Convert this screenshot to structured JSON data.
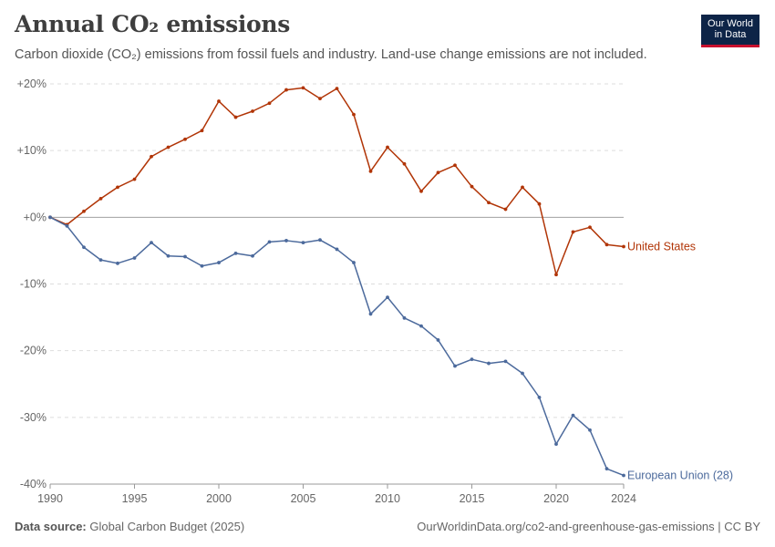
{
  "header": {
    "title": "Annual CO₂ emissions",
    "subtitle": "Carbon dioxide (CO₂) emissions from fossil fuels and industry. Land-use change emissions are not included.",
    "logo_line1": "Our World",
    "logo_line2": "in Data"
  },
  "footer": {
    "source_label": "Data source:",
    "source_value": "Global Carbon Budget (2025)",
    "url_license": "OurWorldinData.org/co2-and-greenhouse-gas-emissions | CC BY"
  },
  "chart_data": {
    "type": "line",
    "title": "Annual CO₂ emissions",
    "subtitle": "Carbon dioxide (CO₂) emissions from fossil fuels and industry. Land-use change emissions are not included.",
    "xlabel": "",
    "ylabel": "",
    "xlim": [
      1990,
      2024
    ],
    "ylim": [
      -40,
      20
    ],
    "x_ticks": [
      1990,
      1995,
      2000,
      2005,
      2010,
      2015,
      2020,
      2024
    ],
    "y_ticks": [
      20,
      10,
      0,
      -10,
      -20,
      -30,
      -40
    ],
    "y_tick_labels": [
      "+20%",
      "+10%",
      "+0%",
      "-10%",
      "-20%",
      "-30%",
      "-40%"
    ],
    "grid": "horizontal-dashed",
    "legend": "inline-right",
    "x": [
      1990,
      1991,
      1992,
      1993,
      1994,
      1995,
      1996,
      1997,
      1998,
      1999,
      2000,
      2001,
      2002,
      2003,
      2004,
      2005,
      2006,
      2007,
      2008,
      2009,
      2010,
      2011,
      2012,
      2013,
      2014,
      2015,
      2016,
      2017,
      2018,
      2019,
      2020,
      2021,
      2022,
      2023,
      2024
    ],
    "series": [
      {
        "name": "United States",
        "color": "#b13507",
        "values": [
          0,
          -1.1,
          0.9,
          2.8,
          4.5,
          5.7,
          9.1,
          10.5,
          11.7,
          13.0,
          17.4,
          15.0,
          15.9,
          17.1,
          19.1,
          19.4,
          17.8,
          19.3,
          15.4,
          6.9,
          10.5,
          8.0,
          3.9,
          6.7,
          7.8,
          4.6,
          2.2,
          1.2,
          4.5,
          2.0,
          -8.6,
          -2.2,
          -1.5,
          -4.1,
          -4.4
        ]
      },
      {
        "name": "European Union (28)",
        "color": "#4c6a9c",
        "values": [
          0,
          -1.3,
          -4.5,
          -6.4,
          -6.9,
          -6.1,
          -3.8,
          -5.8,
          -5.9,
          -7.3,
          -6.8,
          -5.4,
          -5.8,
          -3.7,
          -3.5,
          -3.8,
          -3.4,
          -4.8,
          -6.8,
          -14.5,
          -12.0,
          -15.1,
          -16.3,
          -18.4,
          -22.3,
          -21.3,
          -21.9,
          -21.6,
          -23.4,
          -27.0,
          -34.0,
          -29.7,
          -31.9,
          -37.7,
          -38.7
        ]
      }
    ]
  }
}
